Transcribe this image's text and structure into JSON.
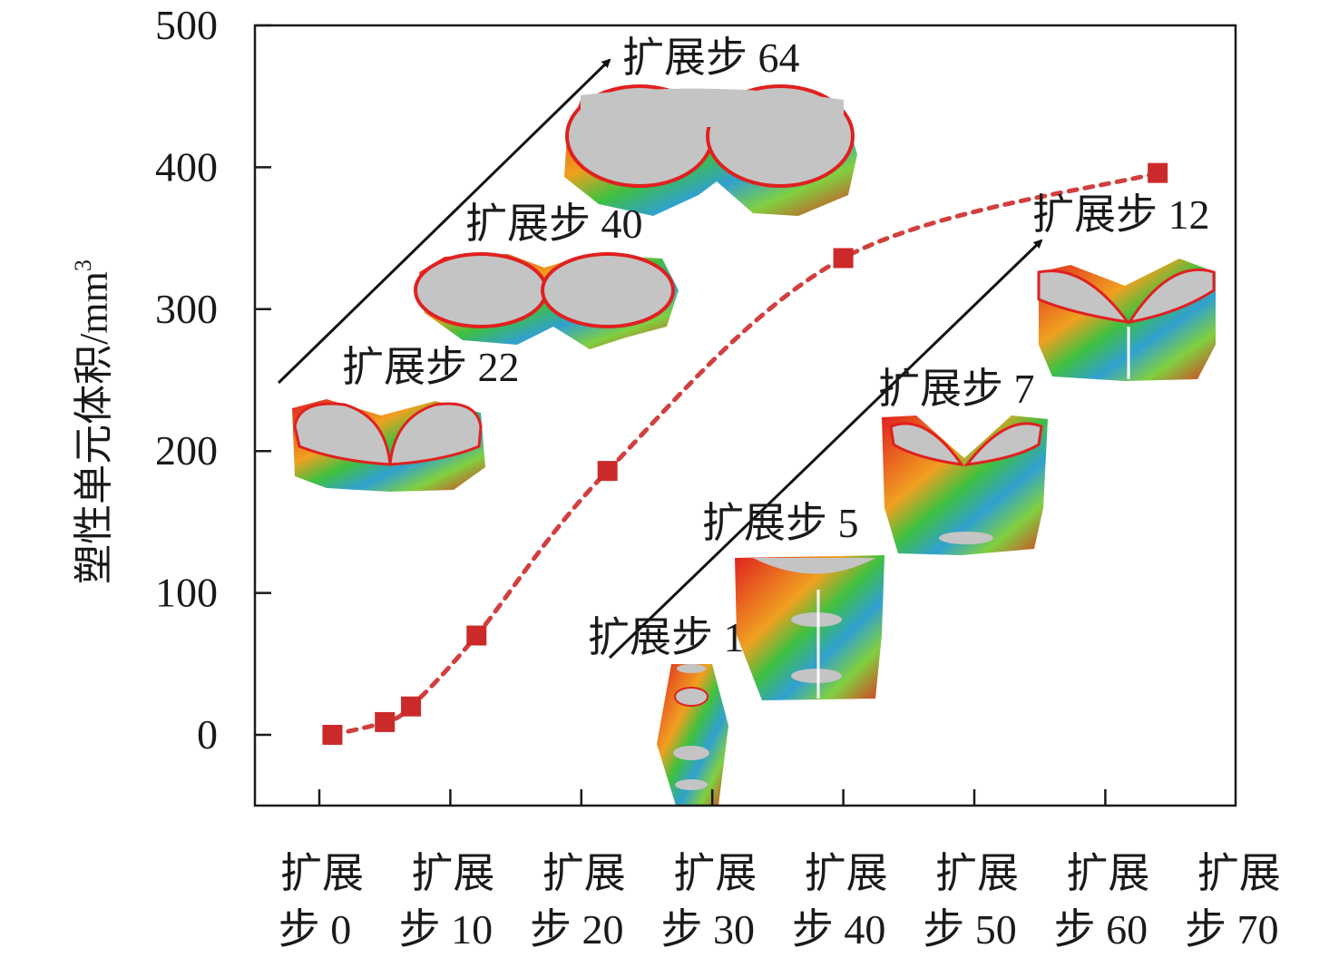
{
  "chart_data": {
    "type": "line",
    "title": "",
    "xlabel": "",
    "ylabel": "塑性单元体积/mm",
    "ylabel_superscript": "3",
    "ylim": [
      -50,
      500
    ],
    "xlim": [
      -5,
      70
    ],
    "y_ticks": [
      "0",
      "100",
      "200",
      "300",
      "400",
      "500"
    ],
    "y_tick_values": [
      0,
      100,
      200,
      300,
      400,
      500
    ],
    "x_tick_values": [
      0,
      10,
      20,
      30,
      40,
      50,
      60,
      70
    ],
    "x_tick_labels": [
      [
        "扩展",
        "步 0"
      ],
      [
        "扩展",
        "步 10"
      ],
      [
        "扩展",
        "步 20"
      ],
      [
        "扩展",
        "步 30"
      ],
      [
        "扩展",
        "步 40"
      ],
      [
        "扩展",
        "步 50"
      ],
      [
        "扩展",
        "步 60"
      ],
      [
        "扩展",
        "步 70"
      ]
    ],
    "grid": false,
    "series": [
      {
        "name": "塑性单元体积",
        "x": [
          1,
          5,
          7,
          12,
          22,
          40,
          64
        ],
        "y": [
          0,
          9,
          20,
          70,
          186,
          336,
          396
        ],
        "color": "#cc2a2a",
        "marker": "square",
        "line_style": "dashed-smooth"
      }
    ],
    "annotations": [
      {
        "label": "扩展步 1"
      },
      {
        "label": "扩展步 5"
      },
      {
        "label": "扩展步 7"
      },
      {
        "label": "扩展步 12"
      },
      {
        "label": "扩展步 22"
      },
      {
        "label": "扩展步 40"
      },
      {
        "label": "扩展步 64"
      }
    ]
  }
}
